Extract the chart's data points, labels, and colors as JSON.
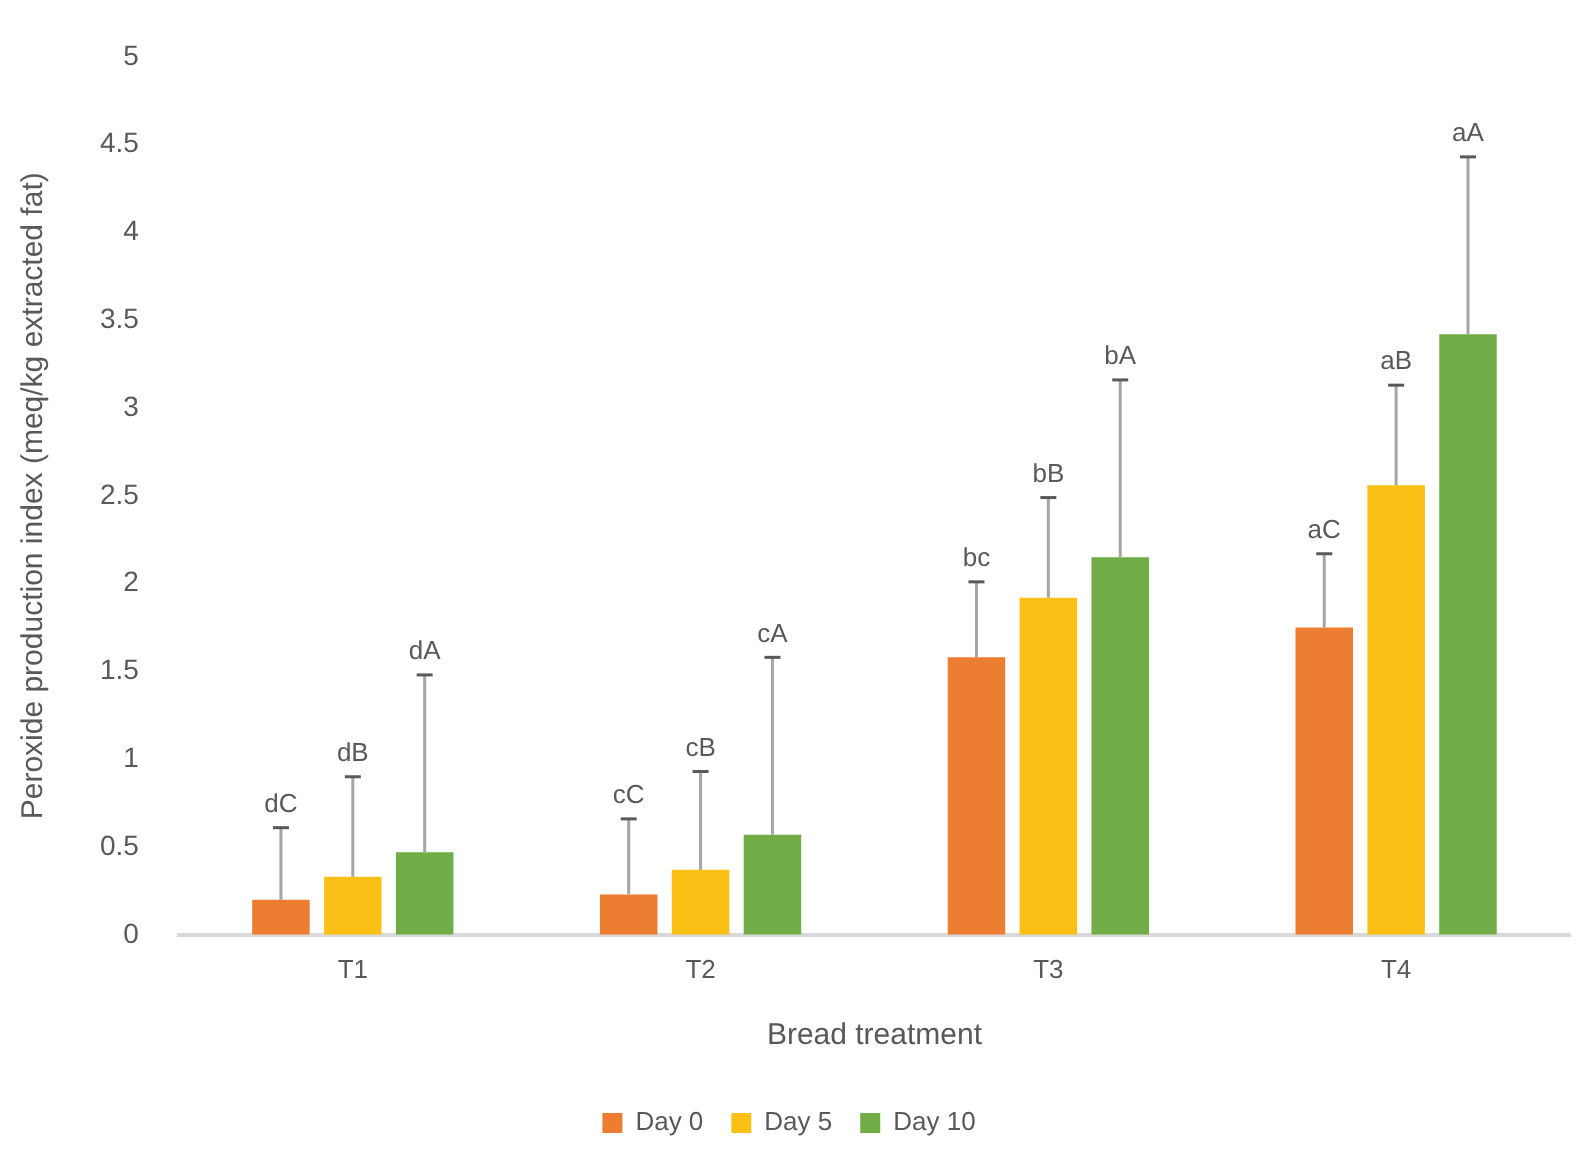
{
  "chart_data": {
    "type": "bar",
    "xlabel": "Bread treatment",
    "ylabel": "Peroxide production index (meq/kg extracted fat)",
    "categories": [
      "T1",
      "T2",
      "T3",
      "T4"
    ],
    "ylim": [
      0,
      5
    ],
    "yticks": [
      0,
      0.5,
      1,
      1.5,
      2,
      2.5,
      3,
      3.5,
      4,
      4.5,
      5
    ],
    "grid": false,
    "legend": "bottom",
    "series": [
      {
        "name": "Day 0",
        "color": "#ed7d31",
        "values": [
          0.2,
          0.23,
          1.58,
          1.75
        ],
        "errors": [
          [
            0.2,
            0.61
          ],
          [
            0.23,
            0.66
          ],
          [
            1.58,
            2.01
          ],
          [
            1.75,
            2.17
          ]
        ]
      },
      {
        "name": "Day 5",
        "color": "#fbc015",
        "values": [
          0.33,
          0.37,
          1.92,
          2.56
        ],
        "errors": [
          [
            0.33,
            0.9
          ],
          [
            0.37,
            0.93
          ],
          [
            1.92,
            2.49
          ],
          [
            2.56,
            3.13
          ]
        ]
      },
      {
        "name": "Day 10",
        "color": "#70ad47",
        "values": [
          0.47,
          0.57,
          2.15,
          3.42
        ],
        "errors": [
          [
            0.47,
            1.48
          ],
          [
            0.57,
            1.58
          ],
          [
            2.15,
            3.16
          ],
          [
            3.42,
            4.43
          ]
        ]
      }
    ],
    "annotations": [
      "dC",
      "dB",
      "dA",
      "cC",
      "cB",
      "cA",
      "bc",
      "bB",
      "bA",
      "aC",
      "aB",
      "aA"
    ]
  }
}
